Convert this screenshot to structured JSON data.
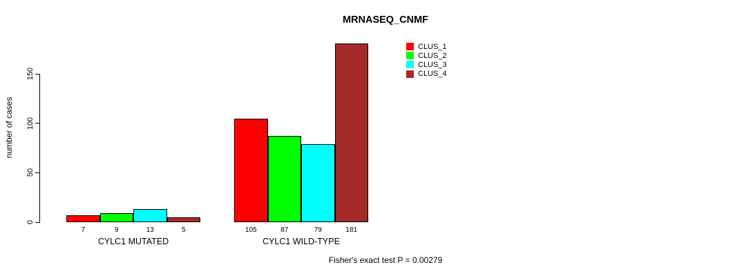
{
  "title": "MRNASEQ_CNMF",
  "y_axis": {
    "label": "number of cases",
    "ticks": [
      0,
      50,
      100,
      150
    ]
  },
  "footer": "Fisher's exact test P = 0.00279",
  "chart_data": {
    "type": "bar",
    "title": "MRNASEQ_CNMF",
    "xlabel": "",
    "ylabel": "number of cases",
    "ylim": [
      0,
      150
    ],
    "grid": false,
    "legend_position": "top-right",
    "categories": [
      "CYLC1 MUTATED",
      "CYLC1 WILD-TYPE"
    ],
    "series": [
      {
        "name": "CLUS_1",
        "color": "#ff0000",
        "values": [
          7,
          105
        ]
      },
      {
        "name": "CLUS_2",
        "color": "#00ff00",
        "values": [
          9,
          87
        ]
      },
      {
        "name": "CLUS_3",
        "color": "#00ffff",
        "values": [
          13,
          79
        ]
      },
      {
        "name": "CLUS_4",
        "color": "#a52a2a",
        "values": [
          5,
          181
        ]
      }
    ],
    "bar_value_labels": [
      [
        7,
        9,
        13,
        5
      ],
      [
        105,
        87,
        79,
        181
      ]
    ],
    "annotation": "Fisher's exact test P = 0.00279"
  }
}
